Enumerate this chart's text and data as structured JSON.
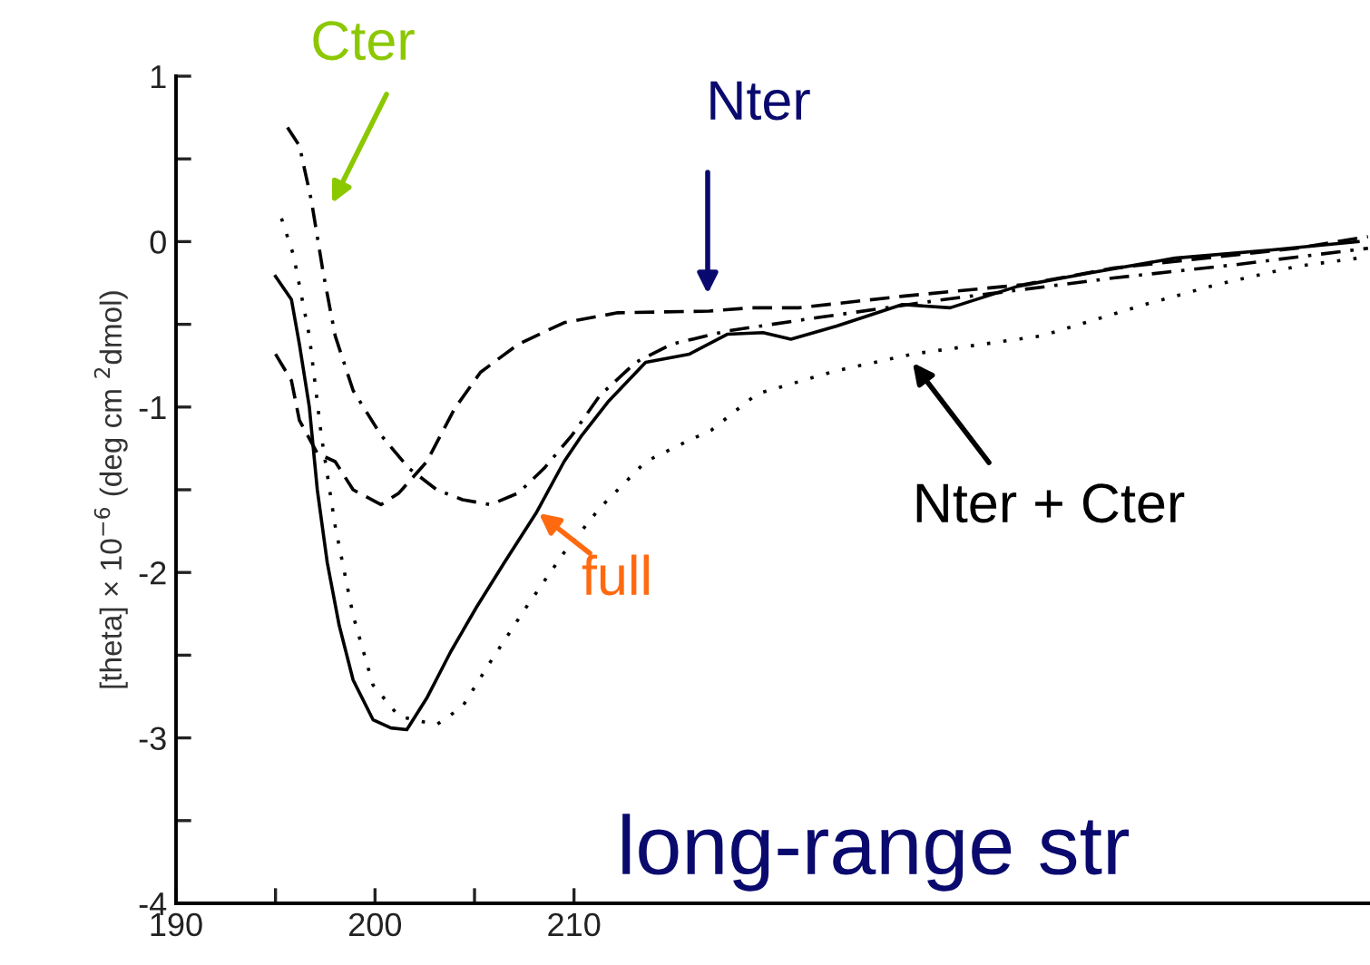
{
  "chart_data": {
    "type": "line",
    "ylabel": "[theta] × 10$^{−6}$ (deg cm $^{2}$dmol)",
    "xlim": [
      190,
      250
    ],
    "xticks": [
      190,
      {
        "value": 195,
        "label": null
      },
      200,
      {
        "value": 205,
        "label": null
      },
      210
    ],
    "ylim": [
      -4,
      1
    ],
    "yticks": [
      -4,
      {
        "value": -3.5,
        "label": null
      },
      -3,
      {
        "value": -2.5,
        "label": null
      },
      -2,
      {
        "value": -1.5,
        "label": null
      },
      -1,
      {
        "value": -0.5,
        "label": null
      },
      0,
      {
        "value": 0.5,
        "label": null
      },
      1
    ],
    "grid": false,
    "legend": false,
    "marker": "none",
    "series": [
      {
        "color": "#000000",
        "line_style": "solid",
        "x": [
          195.0,
          195.8,
          196.2,
          196.7,
          197.1,
          197.6,
          198.2,
          198.9,
          199.9,
          200.8,
          201.6,
          202.6,
          203.8,
          205.1,
          206.5,
          208.1,
          209.5,
          210.4,
          211.7,
          213.6,
          215.8,
          217.7,
          219.5,
          220.9,
          223.2,
          226.5,
          228.9,
          232.3,
          235.9,
          240.2,
          245.1,
          249.4
        ],
        "values": [
          -0.21,
          -0.35,
          -0.62,
          -1.0,
          -1.5,
          -1.94,
          -2.32,
          -2.65,
          -2.89,
          -2.94,
          -2.95,
          -2.76,
          -2.48,
          -2.21,
          -1.94,
          -1.64,
          -1.33,
          -1.17,
          -0.97,
          -0.73,
          -0.68,
          -0.56,
          -0.55,
          -0.59,
          -0.51,
          -0.38,
          -0.4,
          -0.27,
          -0.19,
          -0.1,
          -0.05,
          0.0
        ]
      },
      {
        "color": "#000000",
        "line_style": "dashed",
        "x": [
          195.0,
          195.8,
          196.2,
          197.1,
          198.0,
          198.9,
          200.3,
          201.2,
          202.6,
          204.0,
          205.3,
          207.2,
          209.5,
          212.2,
          216.8,
          218.9,
          221.3,
          226.5,
          232.6,
          237.1,
          246.3,
          249.9
        ],
        "values": [
          -0.68,
          -0.84,
          -1.08,
          -1.28,
          -1.33,
          -1.5,
          -1.59,
          -1.52,
          -1.33,
          -1.01,
          -0.79,
          -0.62,
          -0.49,
          -0.43,
          -0.42,
          -0.4,
          -0.4,
          -0.33,
          -0.26,
          -0.16,
          -0.04,
          0.03
        ]
      },
      {
        "color": "#000000",
        "line_style": "dashdot",
        "x": [
          195.6,
          196.2,
          196.8,
          197.4,
          198.0,
          198.9,
          200.3,
          201.7,
          203.1,
          204.4,
          205.8,
          207.2,
          208.5,
          209.9,
          211.3,
          213.1,
          214.9,
          217.7,
          222.2,
          228.6,
          237.1,
          243.2,
          249.9
        ],
        "values": [
          0.69,
          0.58,
          0.25,
          -0.19,
          -0.57,
          -0.9,
          -1.17,
          -1.37,
          -1.5,
          -1.56,
          -1.59,
          -1.52,
          -1.37,
          -1.17,
          -0.93,
          -0.73,
          -0.62,
          -0.54,
          -0.46,
          -0.35,
          -0.22,
          -0.14,
          -0.04
        ]
      },
      {
        "color": "#000000",
        "line_style": "dotted",
        "x": [
          195.3,
          195.9,
          196.7,
          197.3,
          198.0,
          198.9,
          199.9,
          201.2,
          203.1,
          204.4,
          205.8,
          207.6,
          209.5,
          211.3,
          213.6,
          215.8,
          216.9,
          219.2,
          223.2,
          227.0,
          233.5,
          238.7,
          242.3,
          246.3,
          249.4
        ],
        "values": [
          0.14,
          -0.08,
          -0.57,
          -1.17,
          -1.72,
          -2.26,
          -2.68,
          -2.87,
          -2.92,
          -2.81,
          -2.54,
          -2.21,
          -1.88,
          -1.61,
          -1.33,
          -1.2,
          -1.14,
          -0.92,
          -0.78,
          -0.68,
          -0.57,
          -0.38,
          -0.26,
          -0.15,
          -0.1
        ]
      }
    ],
    "annotations": [
      "Cter",
      "Nter",
      "full",
      "Nter + Cter",
      "long-range str"
    ]
  }
}
